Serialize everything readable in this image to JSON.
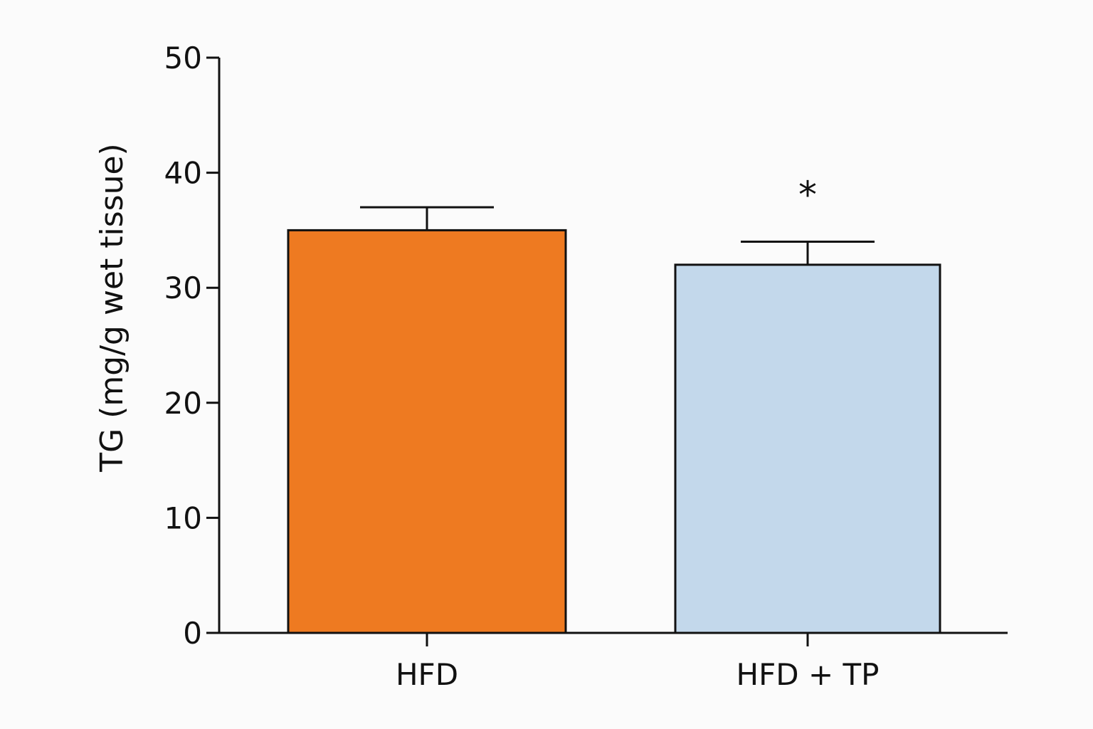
{
  "chart_data": {
    "type": "bar",
    "title": "",
    "xlabel": "",
    "ylabel": "TG (mg/g wet tissue)",
    "ylim": [
      0,
      50
    ],
    "yticks": [
      0,
      10,
      20,
      30,
      40,
      50
    ],
    "ytick_labels": [
      "0",
      "10",
      "20",
      "30",
      "40",
      "50"
    ],
    "grid": false,
    "categories": [
      "HFD",
      "HFD + TP"
    ],
    "values": [
      35,
      32
    ],
    "error_upper": [
      2,
      2
    ],
    "colors": [
      "#ee7a21",
      "#c3d8eb"
    ],
    "annotations": [
      {
        "category": "HFD + TP",
        "text": "*"
      }
    ]
  }
}
